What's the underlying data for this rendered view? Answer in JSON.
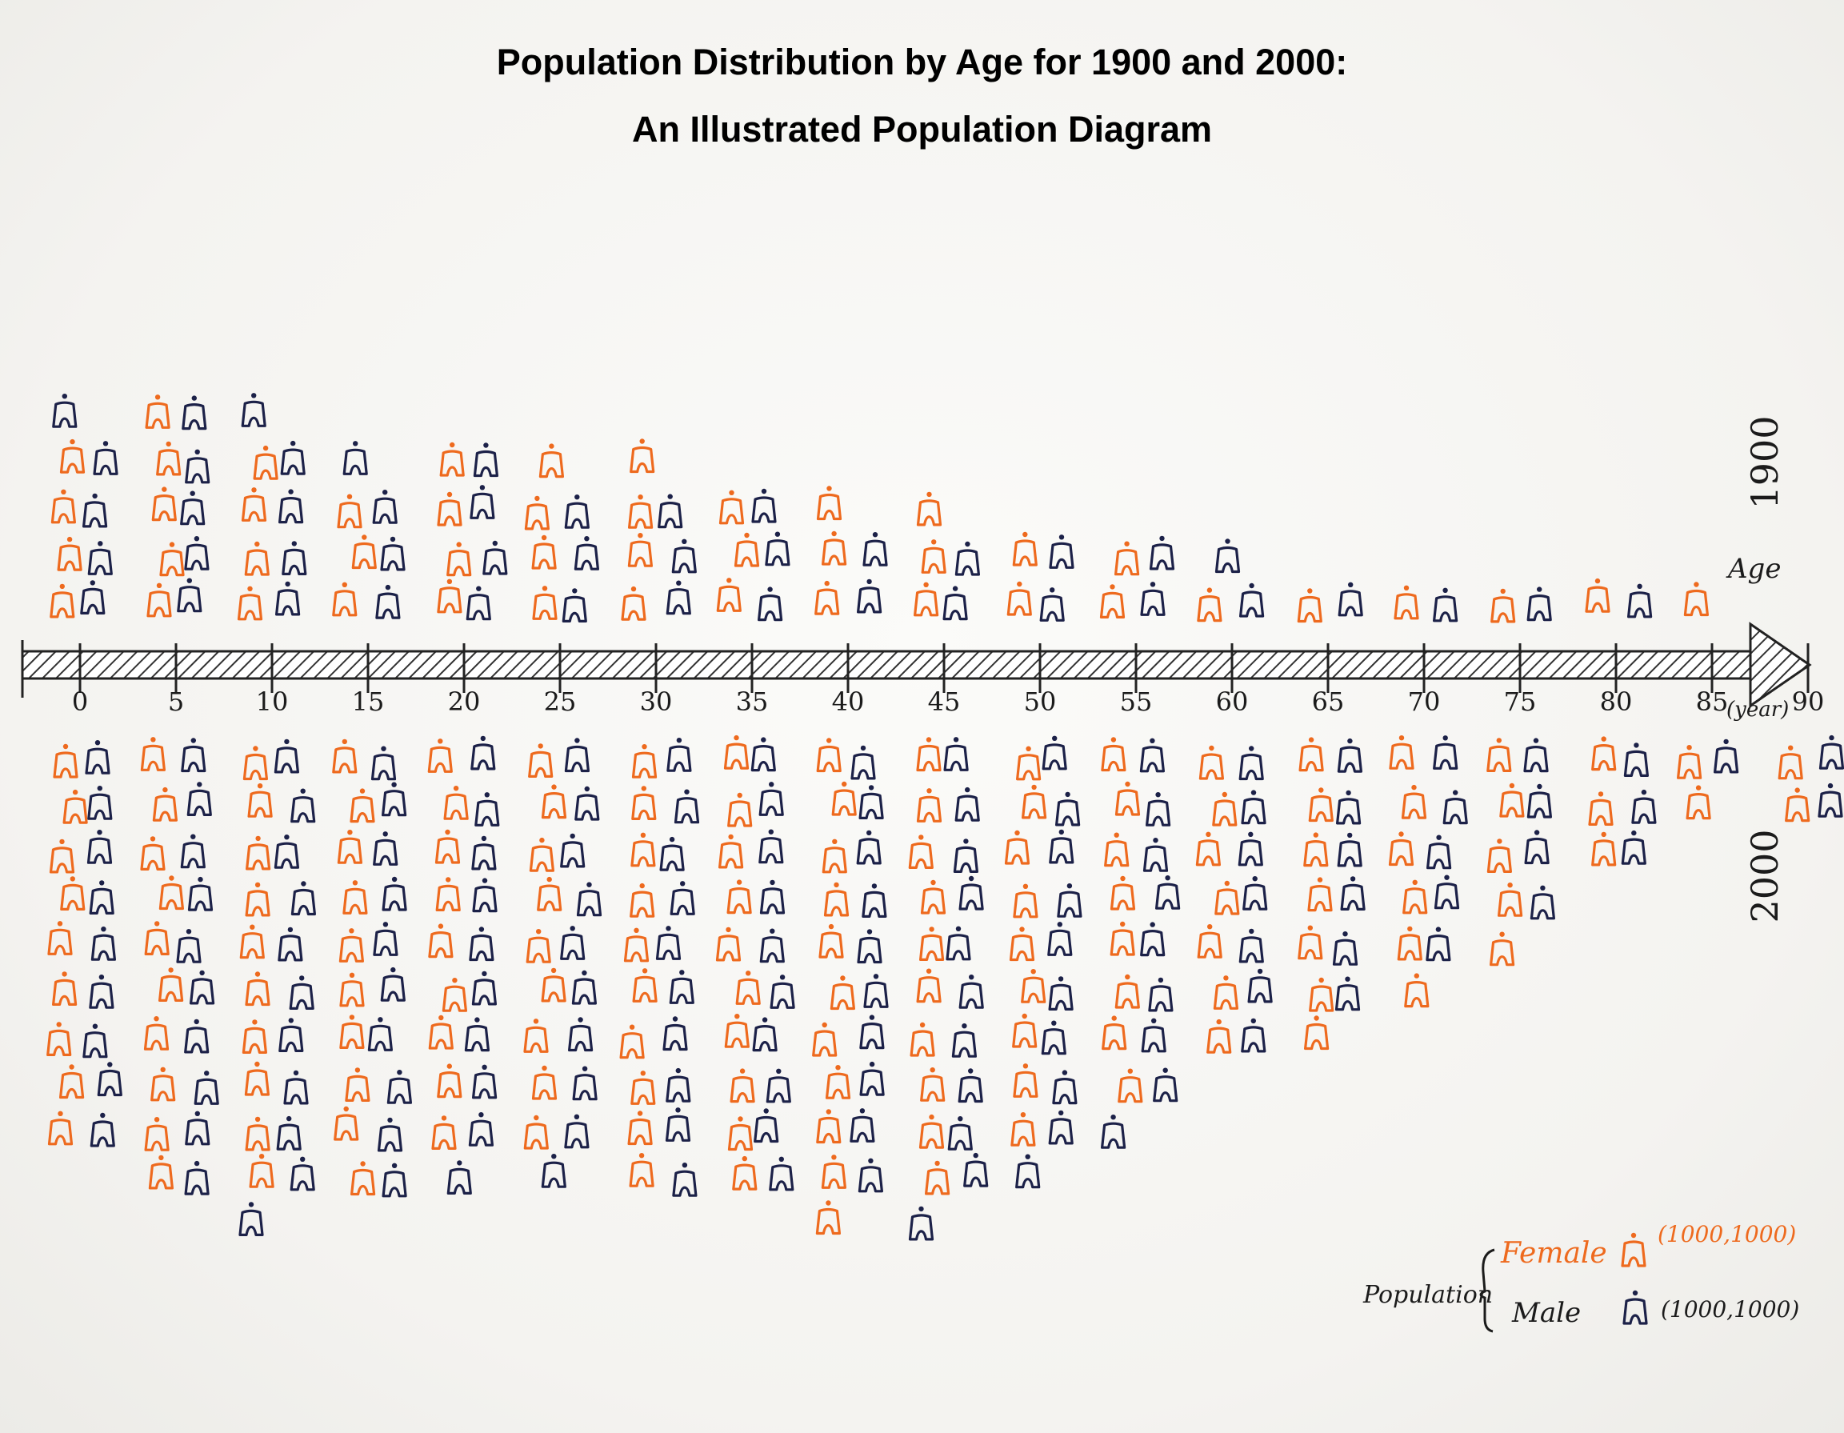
{
  "title": "Population Distribution by Age for 1900 and 2000:",
  "subtitle": "An Illustrated Population Diagram",
  "colors": {
    "female": "#ee6a1e",
    "male": "#1c2148",
    "axis": "#222222"
  },
  "chart_data": {
    "type": "pictograph",
    "x_axis": {
      "label": "Age",
      "unit": "(year)",
      "ticks": [
        "0",
        "5",
        "10",
        "15",
        "20",
        "25",
        "30",
        "35",
        "40",
        "45",
        "50",
        "55",
        "60",
        "65",
        "70",
        "75",
        "80",
        "85",
        "90"
      ],
      "range": [
        0,
        90
      ]
    },
    "panels": [
      {
        "label": "1900",
        "position": "above-axis"
      },
      {
        "label": "2000",
        "position": "below-axis"
      }
    ],
    "legend": {
      "title": "Population",
      "items": [
        {
          "label": "Female",
          "unit": "(1000,1000)",
          "color": "#ee6a1e",
          "icon": "person-icon"
        },
        {
          "label": "Male",
          "unit": "(1000,1000)",
          "color": "#1c2148",
          "icon": "person-icon"
        }
      ]
    },
    "series": [
      {
        "name": "1900",
        "categories": [
          "0",
          "5",
          "10",
          "15",
          "20",
          "25",
          "30",
          "35",
          "40",
          "45",
          "50",
          "55",
          "60",
          "65",
          "70",
          "75",
          "80",
          "85"
        ],
        "female": [
          4,
          5,
          4,
          3,
          4,
          4,
          4,
          3,
          3,
          3,
          2,
          2,
          1,
          1,
          1,
          1,
          1,
          1
        ],
        "male": [
          5,
          5,
          5,
          4,
          4,
          3,
          3,
          3,
          2,
          2,
          2,
          2,
          2,
          1,
          1,
          1,
          1,
          0
        ]
      },
      {
        "name": "2000",
        "categories": [
          "0",
          "5",
          "10",
          "15",
          "20",
          "25",
          "30",
          "35",
          "40",
          "45",
          "50",
          "55",
          "60",
          "65",
          "70",
          "75",
          "80",
          "85",
          "90"
        ],
        "female": [
          9,
          10,
          10,
          10,
          9,
          9,
          10,
          10,
          11,
          10,
          9,
          8,
          7,
          7,
          6,
          5,
          3,
          2,
          2
        ],
        "male": [
          9,
          10,
          11,
          10,
          10,
          10,
          10,
          10,
          10,
          11,
          10,
          9,
          7,
          6,
          5,
          4,
          3,
          1,
          2
        ]
      }
    ]
  }
}
